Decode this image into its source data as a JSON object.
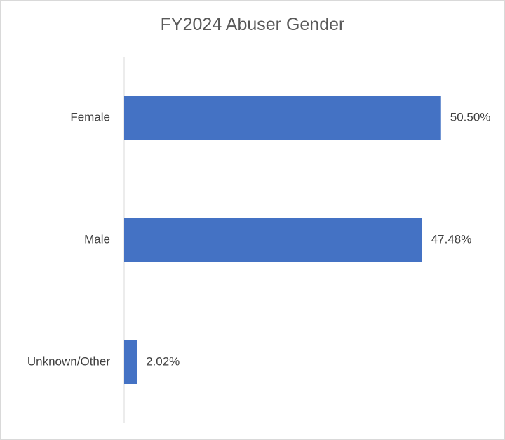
{
  "chart_data": {
    "type": "bar",
    "orientation": "horizontal",
    "title": "FY2024 Abuser Gender",
    "categories": [
      "Female",
      "Male",
      "Unknown/Other"
    ],
    "values": [
      50.5,
      47.48,
      2.02
    ],
    "value_labels": [
      "50.50%",
      "47.48%",
      "2.02%"
    ],
    "unit": "%",
    "xlim": [
      0,
      55
    ],
    "grid": false,
    "legend": "none",
    "bar_color": "#4472c4",
    "axis_color": "#d9d9d9"
  }
}
